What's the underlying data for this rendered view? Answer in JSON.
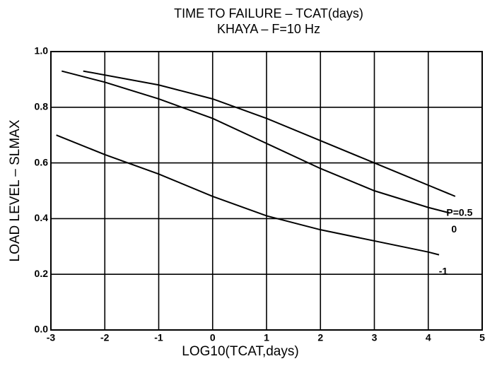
{
  "chart_data": {
    "type": "line",
    "title": "TIME TO FAILURE – TCAT(days)",
    "subtitle": "KHAYA – F=10 Hz",
    "x_label": "LOG10(TCAT,days)",
    "y_label": "LOAD LEVEL – SLMAX",
    "xlim": [
      -3,
      5
    ],
    "xticks": [
      -3,
      -2,
      -1,
      0,
      1,
      2,
      3,
      4,
      5
    ],
    "ylim": [
      0,
      1
    ],
    "yticks": [
      {
        "value": 0,
        "label": "0.0"
      },
      0.2,
      0.4,
      0.6,
      0.8,
      {
        "value": 1,
        "label": "1.0"
      }
    ],
    "grid": true,
    "series": [
      {
        "name": "P=0.5",
        "color": "#000000",
        "x": [
          -2.4,
          -1,
          0,
          1,
          2,
          3,
          4,
          4.5
        ],
        "values": [
          0.93,
          0.88,
          0.83,
          0.76,
          0.68,
          0.6,
          0.52,
          0.48
        ]
      },
      {
        "name": "0",
        "color": "#000000",
        "x": [
          -2.8,
          -2,
          -1,
          0,
          1,
          2,
          3,
          4,
          4.4
        ],
        "values": [
          0.93,
          0.89,
          0.83,
          0.76,
          0.67,
          0.58,
          0.5,
          0.44,
          0.42
        ]
      },
      {
        "name": "-1",
        "color": "#000000",
        "x": [
          -2.9,
          -2,
          -1,
          0,
          1,
          2,
          3,
          4,
          4.2
        ],
        "values": [
          0.7,
          0.63,
          0.56,
          0.48,
          0.41,
          0.36,
          0.32,
          0.28,
          0.27
        ]
      }
    ]
  }
}
